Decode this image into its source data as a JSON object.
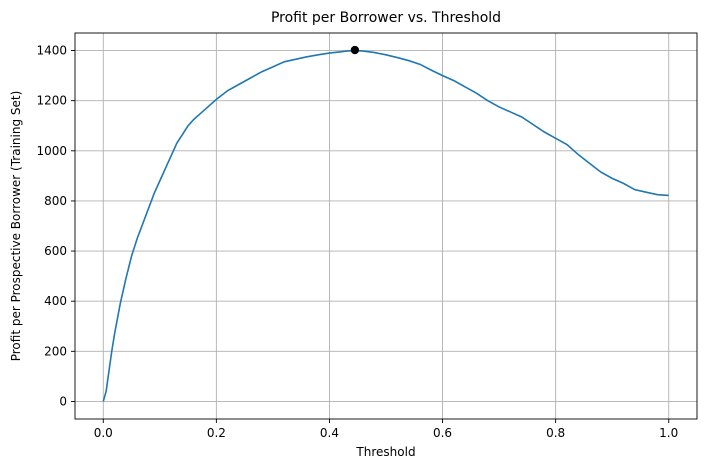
{
  "chart_data": {
    "type": "line",
    "title": "Profit per Borrower vs. Threshold",
    "xlabel": "Threshold",
    "ylabel": "Profit per Prospective Borrower (Training Set)",
    "xlim": [
      -0.05,
      1.05
    ],
    "ylim": [
      -70,
      1470
    ],
    "xticks": [
      0.0,
      0.2,
      0.4,
      0.6,
      0.8,
      1.0
    ],
    "xtick_labels": [
      "0.0",
      "0.2",
      "0.4",
      "0.6",
      "0.8",
      "1.0"
    ],
    "yticks": [
      0,
      200,
      400,
      600,
      800,
      1000,
      1200,
      1400
    ],
    "ytick_labels": [
      "0",
      "200",
      "400",
      "600",
      "800",
      "1000",
      "1200",
      "1400"
    ],
    "grid": true,
    "line_color": "#1f77b4",
    "marker_color": "#000000",
    "series": [
      {
        "x": [
          0.0,
          0.005,
          0.01,
          0.015,
          0.02,
          0.03,
          0.04,
          0.05,
          0.06,
          0.07,
          0.08,
          0.09,
          0.1,
          0.11,
          0.12,
          0.13,
          0.14,
          0.15,
          0.16,
          0.17,
          0.18,
          0.2,
          0.22,
          0.24,
          0.26,
          0.28,
          0.3,
          0.32,
          0.34,
          0.36,
          0.38,
          0.4,
          0.42,
          0.43,
          0.445,
          0.46,
          0.48,
          0.5,
          0.52,
          0.54,
          0.56,
          0.58,
          0.6,
          0.62,
          0.64,
          0.66,
          0.68,
          0.7,
          0.72,
          0.74,
          0.76,
          0.78,
          0.8,
          0.82,
          0.84,
          0.86,
          0.88,
          0.9,
          0.92,
          0.94,
          0.96,
          0.98,
          1.0
        ],
        "y": [
          0,
          40,
          120,
          200,
          270,
          390,
          490,
          580,
          650,
          710,
          770,
          830,
          880,
          930,
          980,
          1030,
          1065,
          1100,
          1125,
          1145,
          1165,
          1205,
          1240,
          1265,
          1290,
          1315,
          1335,
          1355,
          1365,
          1375,
          1383,
          1390,
          1395,
          1398,
          1400,
          1398,
          1392,
          1383,
          1372,
          1360,
          1345,
          1322,
          1300,
          1280,
          1255,
          1230,
          1200,
          1175,
          1155,
          1135,
          1105,
          1075,
          1050,
          1025,
          985,
          950,
          915,
          890,
          870,
          845,
          835,
          825,
          822
        ]
      }
    ],
    "optimum": {
      "x": 0.445,
      "y": 1402
    }
  }
}
